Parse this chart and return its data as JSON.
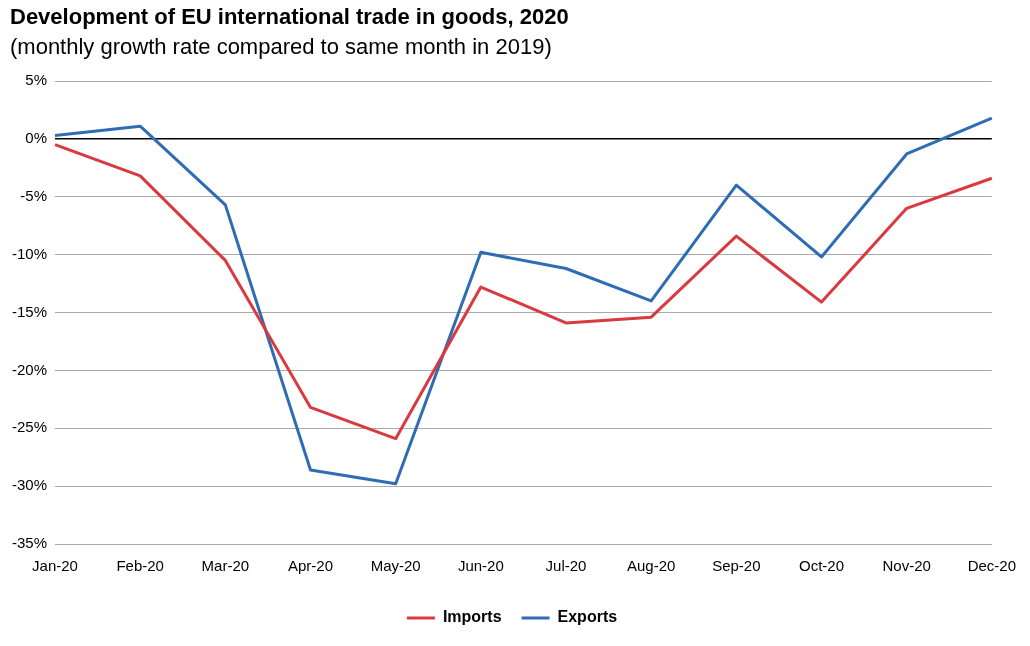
{
  "chart_data": {
    "type": "line",
    "title": "Development of EU international trade in goods, 2020",
    "subtitle": "(monthly growth rate compared to same month in 2019)",
    "categories": [
      "Jan-20",
      "Feb-20",
      "Mar-20",
      "Apr-20",
      "May-20",
      "Jun-20",
      "Jul-20",
      "Aug-20",
      "Sep-20",
      "Oct-20",
      "Nov-20",
      "Dec-20"
    ],
    "series": [
      {
        "name": "Imports",
        "color": "#d9393f",
        "values": [
          -0.5,
          -3.2,
          -10.5,
          -23.2,
          -25.9,
          -12.8,
          -15.9,
          -15.4,
          -8.4,
          -14.1,
          -6.0,
          -3.4
        ]
      },
      {
        "name": "Exports",
        "color": "#2e6db4",
        "values": [
          0.3,
          1.1,
          -5.7,
          -28.6,
          -29.8,
          -9.8,
          -11.2,
          -14.0,
          -4.0,
          -10.2,
          -1.3,
          1.8
        ]
      }
    ],
    "ylim": [
      -35,
      5
    ],
    "yticks": [
      {
        "value": 5,
        "label": "5%"
      },
      {
        "value": 0,
        "label": "0%"
      },
      {
        "value": -5,
        "label": "-5%"
      },
      {
        "value": -10,
        "label": "-10%"
      },
      {
        "value": -15,
        "label": "-15%"
      },
      {
        "value": -20,
        "label": "-20%"
      },
      {
        "value": -25,
        "label": "-25%"
      },
      {
        "value": -30,
        "label": "-30%"
      },
      {
        "value": -35,
        "label": "-35%"
      }
    ],
    "grid": "y",
    "legend": "bottom",
    "marker": "none",
    "line_style": "solid"
  }
}
